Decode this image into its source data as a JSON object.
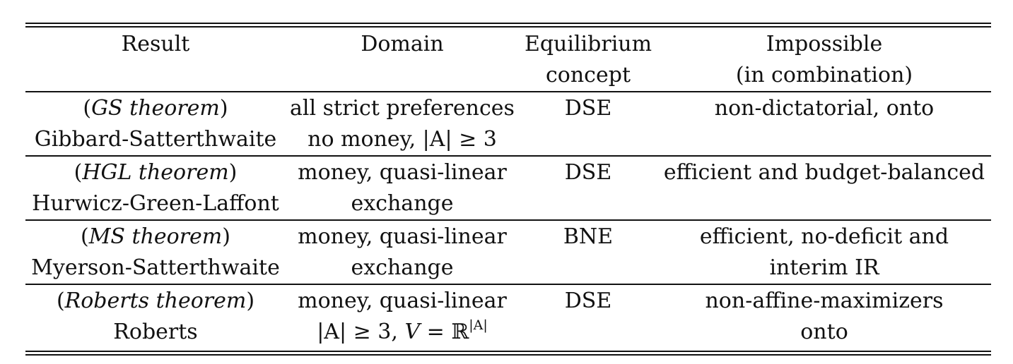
{
  "header": {
    "result": "Result",
    "domain": "Domain",
    "equilibrium_line1": "Equilibrium",
    "equilibrium_line2": "concept",
    "impossible_line1": "Impossible",
    "impossible_line2": "(in combination)"
  },
  "rows": [
    {
      "theorem_label": "GS theorem",
      "author": "Gibbard-Satterthwaite",
      "domain_line1": "all strict preferences",
      "domain_line2": "no money, |A| ≥ 3",
      "concept": "DSE",
      "impossible_line1": "non-dictatorial, onto",
      "impossible_line2": ""
    },
    {
      "theorem_label": "HGL theorem",
      "author": "Hurwicz-Green-Laffont",
      "domain_line1": "money, quasi-linear",
      "domain_line2": "exchange",
      "concept": "DSE",
      "impossible_line1": "efficient and budget-balanced",
      "impossible_line2": ""
    },
    {
      "theorem_label": "MS theorem",
      "author": "Myerson-Satterthwaite",
      "domain_line1": "money, quasi-linear",
      "domain_line2": "exchange",
      "concept": "BNE",
      "impossible_line1": "efficient, no-deficit and",
      "impossible_line2": "interim IR"
    },
    {
      "theorem_label": "Roberts theorem",
      "author": "Roberts",
      "domain_line1": "money, quasi-linear",
      "domain_line2_prefix": "|A| ≥ 3, ",
      "domain_line2_var": "V",
      "domain_line2_eq": " = ℝ",
      "domain_line2_sup": "|A|",
      "concept": "DSE",
      "impossible_line1": "non-affine-maximizers",
      "impossible_line2": "onto"
    }
  ]
}
